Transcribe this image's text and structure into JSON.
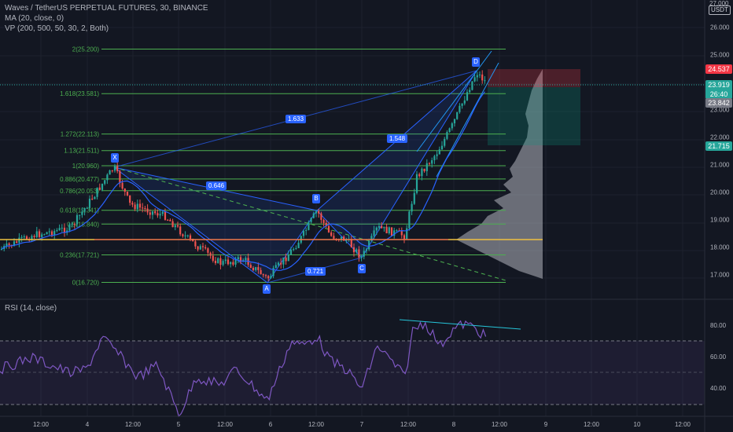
{
  "header": {
    "symbol": "Waves / TetherUS PERPETUAL FUTURES, 30, BINANCE",
    "ma": "MA (20, close, 0)",
    "vp": "VP (200, 500, 50, 30, 2, Both)",
    "rsi": "RSI (14, close)"
  },
  "price_axis": {
    "top_label": "USDT",
    "cut_label": "27.000",
    "ticks": [
      "26.000",
      "25.000",
      "23.000",
      "22.000",
      "21.000",
      "20.000",
      "19.000",
      "18.000",
      "17.000"
    ]
  },
  "price_tags": {
    "stop": "24.537",
    "last": "23.919",
    "countdown": "26:40",
    "ma_val": "23.842",
    "target": "21.715"
  },
  "colors": {
    "background": "#131722",
    "fib": "#4caf50",
    "pattern": "#2962ff",
    "up": "#26a69a",
    "down": "#ef5350",
    "ma": "#2962ff",
    "rsi": "#7e57c2",
    "stop_zone": "#f23645",
    "target_zone": "#089981"
  },
  "fib_levels": [
    {
      "label": "2(25.200)",
      "price": 25.2
    },
    {
      "label": "1.618(23.581)",
      "price": 23.581
    },
    {
      "label": "1.272(22.113)",
      "price": 22.113
    },
    {
      "label": "1.13(21.511)",
      "price": 21.511
    },
    {
      "label": "1(20.960)",
      "price": 20.96
    },
    {
      "label": "0.886(20.477)",
      "price": 20.477
    },
    {
      "label": "0.786(20.053)",
      "price": 20.053
    },
    {
      "label": "0.618(19.341)",
      "price": 19.341
    },
    {
      "label": "0.5(18.840)",
      "price": 18.84
    },
    {
      "label": "0.236(17.721)",
      "price": 17.721
    },
    {
      "label": "0(16.720)",
      "price": 16.72
    }
  ],
  "pattern": {
    "points": {
      "X": "X",
      "A": "A",
      "B": "B",
      "C": "C",
      "D": "D"
    },
    "ratios": {
      "xb": "0.646",
      "ac": "0.721",
      "bd": "1.548",
      "xd": "1.633"
    }
  },
  "rsi_axis": {
    "ticks": [
      "80.00",
      "60.00",
      "40.00"
    ]
  },
  "time_axis": {
    "labels": [
      "12:00",
      "4",
      "12:00",
      "5",
      "12:00",
      "6",
      "12:00",
      "7",
      "12:00",
      "8",
      "12:00",
      "9",
      "12:00",
      "10",
      "12:00"
    ]
  }
}
